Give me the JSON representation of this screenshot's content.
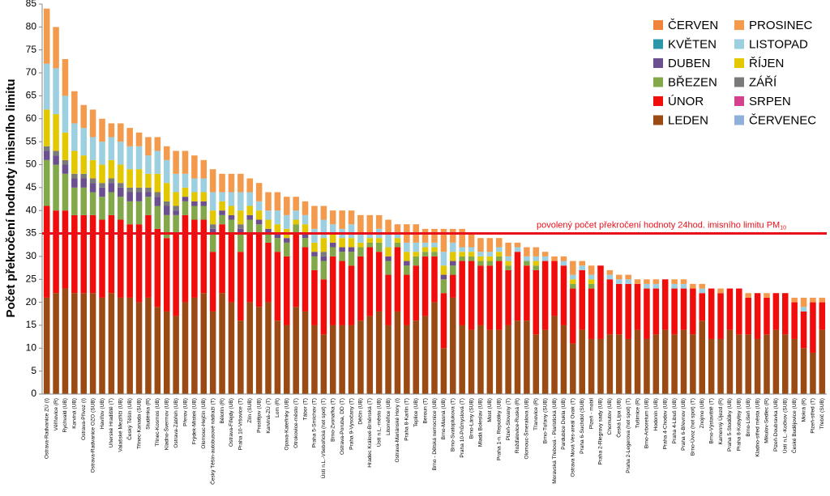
{
  "chart_data": {
    "type": "stacked_bar",
    "y_label": "Počet překročení hodnoty imisního limitu",
    "ylim": [
      0,
      85
    ],
    "yticks": [
      0,
      5,
      10,
      15,
      20,
      25,
      30,
      35,
      40,
      45,
      50,
      55,
      60,
      65,
      70,
      75,
      80,
      85
    ],
    "grid": false,
    "legend": "top-right",
    "threshold": {
      "value": 35,
      "label": "povolený počet překročení hodnoty 24hod. imisního limitu PM",
      "label_sub": "10",
      "color": "#e8101a"
    },
    "categories": [
      "Ostrava-Radvanice ZÚ (I)",
      "Věřňovice (R)",
      "Rychvald (UB)",
      "Karviná (UB)",
      "Ostrava-Přívoz (I)",
      "Ostrava-Radvanice OZO (SUB)",
      "Havířov (UB)",
      "Uherské Hradiště (T)",
      "Valašské Meziříčí (UB)",
      "Český Těšín (UB)",
      "Třinec-Kanada (SUB)",
      "Studénka (R)",
      "Třinec-Kosmos (UB)",
      "Kladno-Švermov (UB)",
      "Ostrava-Zábřeh (UB)",
      "Přerov (UB)",
      "Frýdek-Místek (UB)",
      "Olomouc-Hejčín (UB)",
      "Český Těšín-autobusové nádraží (T)",
      "Bělotín (R)",
      "Ostrava-Fifejdy (UB)",
      "Praha 10-Vršovice (T)",
      "Zlín (SUB)",
      "Prostějov (UB)",
      "Karviná-ZÚ (T)",
      "Lom (R)",
      "Opava-Kateřinky (UB)",
      "Otrokovice-město (T)",
      "Tábor (T)",
      "Praha 5-Smíchov (T)",
      "Ústí n.L.-Všebořická (hot spot) (T)",
      "Brno-Zvonařka (T)",
      "Ostrava-Poruba, DD (T)",
      "Praha 9-Vysočany (T)",
      "Děčín (UB)",
      "Hradec Králové-Brněnská (T)",
      "Ústí n.L.-město (UB)",
      "Litoměřice (UB)",
      "Ostrava-Mariánské Hory (I)",
      "Praha 8-Karlín (T)",
      "Teplice (UB)",
      "Beroun (T)",
      "Brno - Dětská nemocnice (UB)",
      "Brno-Masná (UB)",
      "Brno-Svatoplukova (T)",
      "Praha 10-Průmyslová (T)",
      "Brno-Lány (SUB)",
      "Mladá Boleslav (UB)",
      "Most (UB)",
      "Praha 1-n. Republiky (UB)",
      "Plzeň-Slovany (T)",
      "Rožďalovice-Ruská (R)",
      "Olomouc-Šmeralova (UB)",
      "Třanovice (R)",
      "Brno-Tuřany (SUB)",
      "Moravská Třebová - Piaristická (UB)",
      "Pardubice Dukla (UB)",
      "Ostrava Nová Ves-areál Ovak (T)",
      "Praha 6-Suchdol (SUB)",
      "Plzeň - mobil",
      "Praha 2-Riegrovy sady (UB)",
      "Chomutov (UB)",
      "Česká Lípa (UB)",
      "Praha 2-Legerova (hot spot) (T)",
      "Tušimice (R)",
      "Brno-Arboretum (UB)",
      "Hodonín (UB)",
      "Praha 4-Chodov (UB)",
      "Praha 4-Libuš (UB)",
      "Praha 6-Břevnov (UB)",
      "Brno-Úvoz (hot spot) (T)",
      "Znojmo (UB)",
      "Brno-Výstaviště (T)",
      "Kamenný Újezd (R)",
      "Praha 5-Stodůlky (UB)",
      "Praha 8-Kobylisy (UB)",
      "Brno-Líšeň (UB)",
      "Kladno-střed města (UB)",
      "Mikulov-Sedlec (R)",
      "Plzeň-Doubravka (UB)",
      "Ústí n.L.-Kočkov (SUB)",
      "České Budějovice (UB)",
      "Mokrá (R)",
      "Plzeň-střed (T)",
      "Třebíč (SUB)"
    ],
    "series": [
      {
        "name": "LEDEN",
        "color": "#9a4a12",
        "values": [
          21,
          22,
          23,
          22,
          22,
          22,
          21,
          22,
          21,
          21,
          20,
          21,
          19,
          18,
          17,
          20,
          21,
          22,
          18,
          22,
          20,
          16,
          20,
          19,
          20,
          16,
          15,
          19,
          18,
          15,
          13,
          15,
          15,
          15,
          16,
          17,
          18,
          15,
          18,
          15,
          16,
          17,
          20,
          10,
          21,
          15,
          14,
          15,
          14,
          14,
          15,
          16,
          16,
          13,
          14,
          17,
          15,
          11,
          14,
          12,
          12,
          13,
          13,
          12,
          14,
          12,
          13,
          14,
          13,
          14,
          13,
          16,
          12,
          12,
          14,
          13,
          13,
          12,
          13,
          14,
          13,
          12,
          10,
          9,
          14
        ]
      },
      {
        "name": "ÚNOR",
        "color": "#f20d0d",
        "values": [
          20,
          18,
          17,
          17,
          17,
          17,
          17,
          17,
          17,
          16,
          17,
          18,
          17,
          16,
          18,
          19,
          17,
          16,
          13,
          15,
          15,
          15,
          15,
          16,
          13,
          15,
          15,
          16,
          14,
          12,
          12,
          15,
          14,
          13,
          14,
          15,
          13,
          11,
          14,
          11,
          12,
          13,
          10,
          12,
          5,
          14,
          15,
          13,
          14,
          15,
          12,
          15,
          12,
          14,
          15,
          12,
          13,
          12,
          13,
          11,
          16,
          12,
          11,
          12,
          10,
          11,
          10,
          11,
          10,
          9,
          10,
          6,
          11,
          10,
          9,
          10,
          8,
          10,
          8,
          8,
          9,
          8,
          8,
          11,
          6
        ]
      },
      {
        "name": "BŘEZEN",
        "color": "#82a84a",
        "values": [
          10,
          10,
          8,
          6,
          6,
          5,
          5,
          5,
          5,
          5,
          5,
          4,
          5,
          5,
          4,
          3,
          3,
          3,
          4,
          2,
          3,
          4,
          3,
          2,
          2,
          3,
          3,
          2,
          2,
          3,
          4,
          2,
          2,
          3,
          2,
          1,
          2,
          3,
          1,
          2,
          2,
          1,
          1,
          3,
          2,
          1,
          1,
          1,
          1,
          1,
          1,
          0,
          1,
          1,
          0,
          0,
          0,
          1,
          0,
          1,
          0,
          0,
          0,
          0,
          0,
          0,
          0,
          0,
          0,
          0,
          0,
          0,
          0,
          0,
          0,
          0,
          0,
          0,
          0,
          0,
          0,
          0,
          0,
          0,
          0
        ]
      },
      {
        "name": "DUBEN",
        "color": "#6b4f8f",
        "values": [
          2,
          2,
          2,
          2,
          2,
          2,
          2,
          2,
          2,
          2,
          2,
          1,
          2,
          2,
          1,
          1,
          1,
          1,
          1,
          1,
          1,
          1,
          1,
          1,
          1,
          1,
          1,
          0,
          1,
          1,
          1,
          1,
          1,
          1,
          0,
          0,
          0,
          1,
          0,
          1,
          0,
          0,
          0,
          1,
          1,
          0,
          0,
          0,
          0,
          0,
          0,
          0,
          0,
          0,
          0,
          0,
          0,
          0,
          0,
          0,
          0,
          0,
          0,
          0,
          0,
          0,
          0,
          0,
          0,
          0,
          0,
          0,
          0,
          0,
          0,
          0,
          0,
          0,
          0,
          0,
          0,
          0,
          0,
          0,
          0
        ]
      },
      {
        "name": "KVĚTEN",
        "color": "#2c97a8",
        "values": [
          0,
          0,
          0,
          0,
          0,
          0,
          0,
          0,
          0,
          0,
          0,
          0,
          0,
          0,
          0,
          0,
          0,
          0,
          0,
          0,
          0,
          0,
          0,
          0,
          0,
          0,
          0,
          0,
          0,
          0,
          0,
          0,
          0,
          0,
          0,
          0,
          0,
          0,
          0,
          0,
          0,
          0,
          0,
          0,
          0,
          0,
          0,
          0,
          0,
          0,
          0,
          0,
          0,
          0,
          0,
          0,
          0,
          0,
          0,
          0,
          0,
          0,
          0,
          0,
          0,
          0,
          0,
          0,
          0,
          0,
          0,
          0,
          0,
          0,
          0,
          0,
          0,
          0,
          0,
          0,
          0,
          0,
          0,
          0,
          0
        ]
      },
      {
        "name": "ČERVEN",
        "color": "#f0853a",
        "values": [
          0,
          0,
          0,
          0,
          0,
          0,
          0,
          0,
          0,
          0,
          0,
          0,
          0,
          0,
          0,
          0,
          0,
          0,
          0,
          0,
          0,
          0,
          0,
          0,
          0,
          0,
          0,
          0,
          0,
          0,
          0,
          0,
          0,
          0,
          0,
          0,
          0,
          0,
          0,
          0,
          0,
          0,
          0,
          0,
          0,
          0,
          0,
          0,
          0,
          0,
          0,
          0,
          0,
          0,
          0,
          0,
          0,
          0,
          0,
          0,
          0,
          0,
          0,
          0,
          0,
          0,
          0,
          0,
          0,
          0,
          0,
          0,
          0,
          0,
          0,
          0,
          0,
          0,
          0,
          0,
          0,
          0,
          0,
          0,
          0
        ]
      },
      {
        "name": "ČERVENEC",
        "color": "#8fb0d8",
        "values": [
          0,
          0,
          0,
          0,
          0,
          0,
          0,
          0,
          0,
          0,
          0,
          0,
          0,
          0,
          0,
          0,
          0,
          0,
          0,
          0,
          0,
          0,
          0,
          0,
          0,
          0,
          0,
          0,
          0,
          0,
          0,
          0,
          0,
          0,
          0,
          0,
          0,
          0,
          0,
          0,
          0,
          0,
          0,
          0,
          0,
          0,
          0,
          0,
          0,
          0,
          0,
          0,
          0,
          0,
          0,
          0,
          0,
          0,
          0,
          0,
          0,
          0,
          0,
          0,
          0,
          0,
          0,
          0,
          0,
          0,
          0,
          0,
          0,
          0,
          0,
          0,
          0,
          0,
          0,
          0,
          0,
          0,
          0,
          0,
          0
        ]
      },
      {
        "name": "SRPEN",
        "color": "#d6418e",
        "values": [
          0,
          0,
          0,
          0,
          0,
          0,
          0,
          0,
          0,
          0,
          0,
          0,
          0,
          0,
          0,
          0,
          0,
          0,
          0,
          0,
          0,
          0,
          0,
          0,
          0,
          0,
          0,
          0,
          0,
          0,
          0,
          0,
          0,
          0,
          0,
          0,
          0,
          0,
          0,
          0,
          0,
          0,
          0,
          0,
          0,
          0,
          0,
          0,
          0,
          0,
          0,
          0,
          0,
          0,
          0,
          0,
          0,
          0,
          0,
          0,
          0,
          0,
          0,
          0,
          0,
          0,
          0,
          0,
          0,
          0,
          0,
          0,
          0,
          0,
          0,
          0,
          0,
          0,
          0,
          0,
          0,
          0,
          0,
          0,
          0
        ]
      },
      {
        "name": "ZÁŘÍ",
        "color": "#7a7a7a",
        "values": [
          1,
          1,
          1,
          1,
          1,
          1,
          1,
          1,
          1,
          1,
          1,
          1,
          1,
          1,
          1,
          0,
          0,
          0,
          1,
          0,
          0,
          1,
          0,
          0,
          0,
          0,
          0,
          0,
          0,
          0,
          1,
          0,
          0,
          0,
          0,
          0,
          0,
          0,
          0,
          0,
          0,
          0,
          0,
          0,
          0,
          0,
          0,
          0,
          0,
          0,
          0,
          0,
          0,
          0,
          0,
          0,
          0,
          0,
          0,
          0,
          0,
          0,
          0,
          0,
          0,
          0,
          0,
          0,
          0,
          0,
          0,
          0,
          0,
          0,
          0,
          0,
          0,
          0,
          0,
          0,
          0,
          0,
          0,
          0,
          0
        ]
      },
      {
        "name": "ŘÍJEN",
        "color": "#e3c800",
        "values": [
          8,
          8,
          6,
          5,
          4,
          4,
          4,
          4,
          4,
          4,
          4,
          3,
          4,
          4,
          3,
          2,
          2,
          2,
          3,
          2,
          2,
          3,
          2,
          2,
          2,
          2,
          2,
          1,
          2,
          2,
          3,
          2,
          2,
          2,
          1,
          1,
          1,
          2,
          1,
          2,
          1,
          1,
          1,
          2,
          2,
          1,
          1,
          1,
          1,
          1,
          1,
          0,
          0,
          1,
          0,
          0,
          0,
          1,
          0,
          1,
          0,
          0,
          0,
          0,
          0,
          0,
          0,
          0,
          0,
          0,
          0,
          0,
          0,
          0,
          0,
          0,
          0,
          0,
          0,
          0,
          0,
          0,
          0,
          0,
          0
        ]
      },
      {
        "name": "LISTOPAD",
        "color": "#9ccfe0",
        "values": [
          10,
          10,
          8,
          6,
          6,
          5,
          5,
          5,
          5,
          5,
          5,
          4,
          5,
          5,
          4,
          3,
          3,
          3,
          4,
          2,
          3,
          4,
          3,
          2,
          2,
          3,
          3,
          2,
          2,
          3,
          4,
          2,
          2,
          3,
          2,
          1,
          2,
          3,
          1,
          2,
          2,
          1,
          1,
          3,
          2,
          1,
          1,
          1,
          1,
          1,
          1,
          1,
          1,
          1,
          1,
          0,
          1,
          1,
          1,
          1,
          0,
          1,
          1,
          1,
          0,
          1,
          1,
          0,
          1,
          1,
          0,
          1,
          0,
          0,
          0,
          0,
          0,
          0,
          0,
          0,
          0,
          0,
          1,
          0,
          0
        ]
      },
      {
        "name": "PROSINEC",
        "color": "#f39a4c",
        "values": [
          12,
          9,
          8,
          7,
          5,
          6,
          5,
          3,
          4,
          4,
          3,
          4,
          3,
          3,
          5,
          5,
          5,
          4,
          5,
          4,
          4,
          4,
          3,
          4,
          4,
          4,
          4,
          3,
          3,
          5,
          3,
          3,
          4,
          3,
          4,
          4,
          3,
          3,
          2,
          4,
          4,
          3,
          3,
          5,
          3,
          4,
          3,
          3,
          3,
          2,
          3,
          1,
          2,
          2,
          1,
          1,
          1,
          3,
          1,
          2,
          0,
          1,
          1,
          1,
          1,
          1,
          1,
          0,
          1,
          1,
          1,
          1,
          0,
          1,
          0,
          0,
          1,
          0,
          1,
          0,
          0,
          1,
          2,
          1,
          1
        ]
      }
    ]
  }
}
